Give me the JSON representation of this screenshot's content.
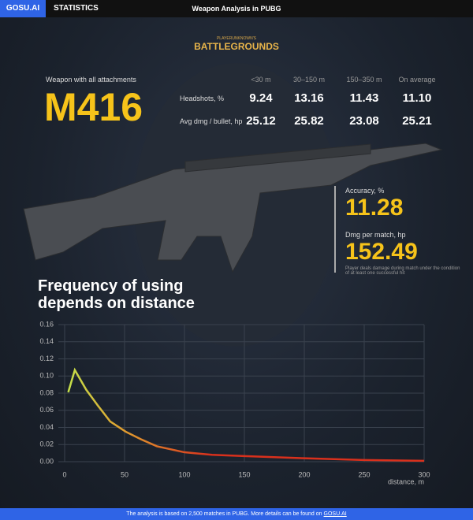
{
  "header": {
    "brand": "GOSU.AI",
    "tab": "STATISTICS",
    "title": "Weapon Analysis in PUBG"
  },
  "logo": {
    "top": "PLAYERUNKNOWN'S",
    "main": "BATTLEGROUNDS"
  },
  "weapon": {
    "caption": "Weapon with all attachments",
    "name": "M416"
  },
  "table": {
    "columns": [
      "<30 m",
      "30–150 m",
      "150–350 m",
      "On average"
    ],
    "rows": [
      {
        "label": "Headshots, %",
        "values": [
          "9.24",
          "13.16",
          "11.43",
          "11.10"
        ]
      },
      {
        "label": "Avg dmg / bullet, hp",
        "values": [
          "25.12",
          "25.82",
          "23.08",
          "25.21"
        ]
      }
    ]
  },
  "stats": [
    {
      "label": "Accuracy, %",
      "value": "11.28"
    },
    {
      "label": "Dmg per match, hp",
      "value": "152.49",
      "note": "Player deals damage during match under the condition of at least one successful hit"
    }
  ],
  "chart_data": {
    "type": "line",
    "title": "Frequency of using depends on distance",
    "xlabel": "distance, m",
    "x": [
      3,
      8.5,
      18,
      28,
      38,
      51,
      64,
      77,
      100,
      123,
      150,
      200,
      250,
      300
    ],
    "series": [
      {
        "color": "#d9301c",
        "values": [
          0.081,
          0.107,
          0.084,
          0.065,
          0.047,
          0.035,
          0.026,
          0.018,
          0.011,
          0.008,
          0.0065,
          0.004,
          0.002,
          0.001
        ]
      }
    ],
    "xlim": [
      0,
      300
    ],
    "xticks": [
      0,
      50,
      100,
      150,
      200,
      250,
      300
    ],
    "ylim": [
      0,
      0.16
    ],
    "yticks": [
      {
        "value": 0,
        "label": "0.00"
      },
      0.02,
      0.04,
      0.06,
      0.08,
      {
        "value": 0.1,
        "label": "0.10"
      },
      0.12,
      0.14,
      0.16
    ],
    "grid": true
  },
  "footer": {
    "text": "The analysis is based on 2,500 matches in PUBG. More details can be found on",
    "link": "GOSU.AI"
  }
}
